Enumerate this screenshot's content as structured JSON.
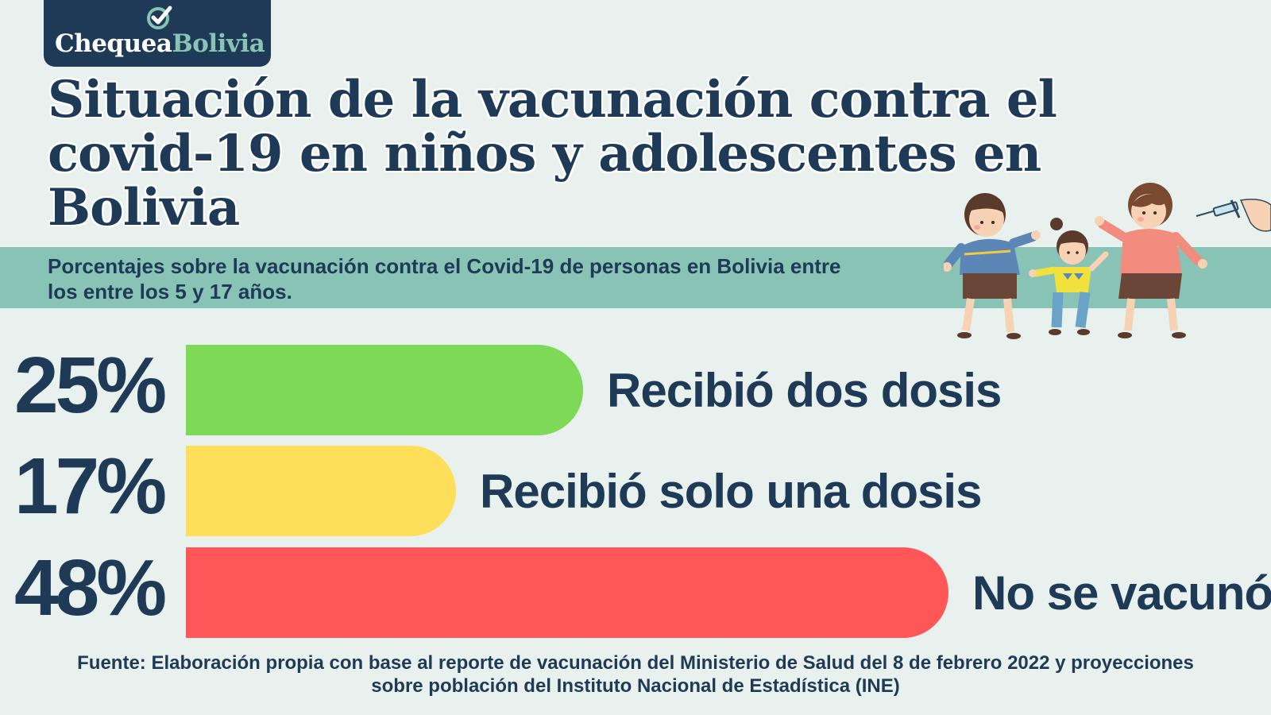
{
  "brand": {
    "part1": "Chequea",
    "part2": "Bolivia"
  },
  "title": "Situación de la vacunación contra el covid-19 en niños y adolescentes en Bolivia",
  "subtitle_lines": [
    "Porcentajes sobre la vacunación contra el Covid-19  de personas en Bolivia entre",
    "los  entre los 5  y 17 años."
  ],
  "chart_data": {
    "type": "bar",
    "orientation": "horizontal",
    "categories": [
      "Recibió dos dosis",
      "Recibió solo una dosis",
      "No se vacunó"
    ],
    "values": [
      25,
      17,
      48
    ],
    "value_labels": [
      "25%",
      "17%",
      "48%"
    ],
    "colors": [
      "#7ed957",
      "#ffde59",
      "#ff5757"
    ]
  },
  "source_lines": [
    "Fuente: Elaboración propia con base al reporte de vacunación del Ministerio de Salud del 8 de febrero 2022 y proyecciones",
    "sobre población del Instituto Nacional de Estadística (INE)"
  ],
  "colors": {
    "background": "#e8f1ee",
    "navy": "#1e3a56",
    "teal": "#89c3b6"
  },
  "illustration": "children-vaccination-illustration"
}
